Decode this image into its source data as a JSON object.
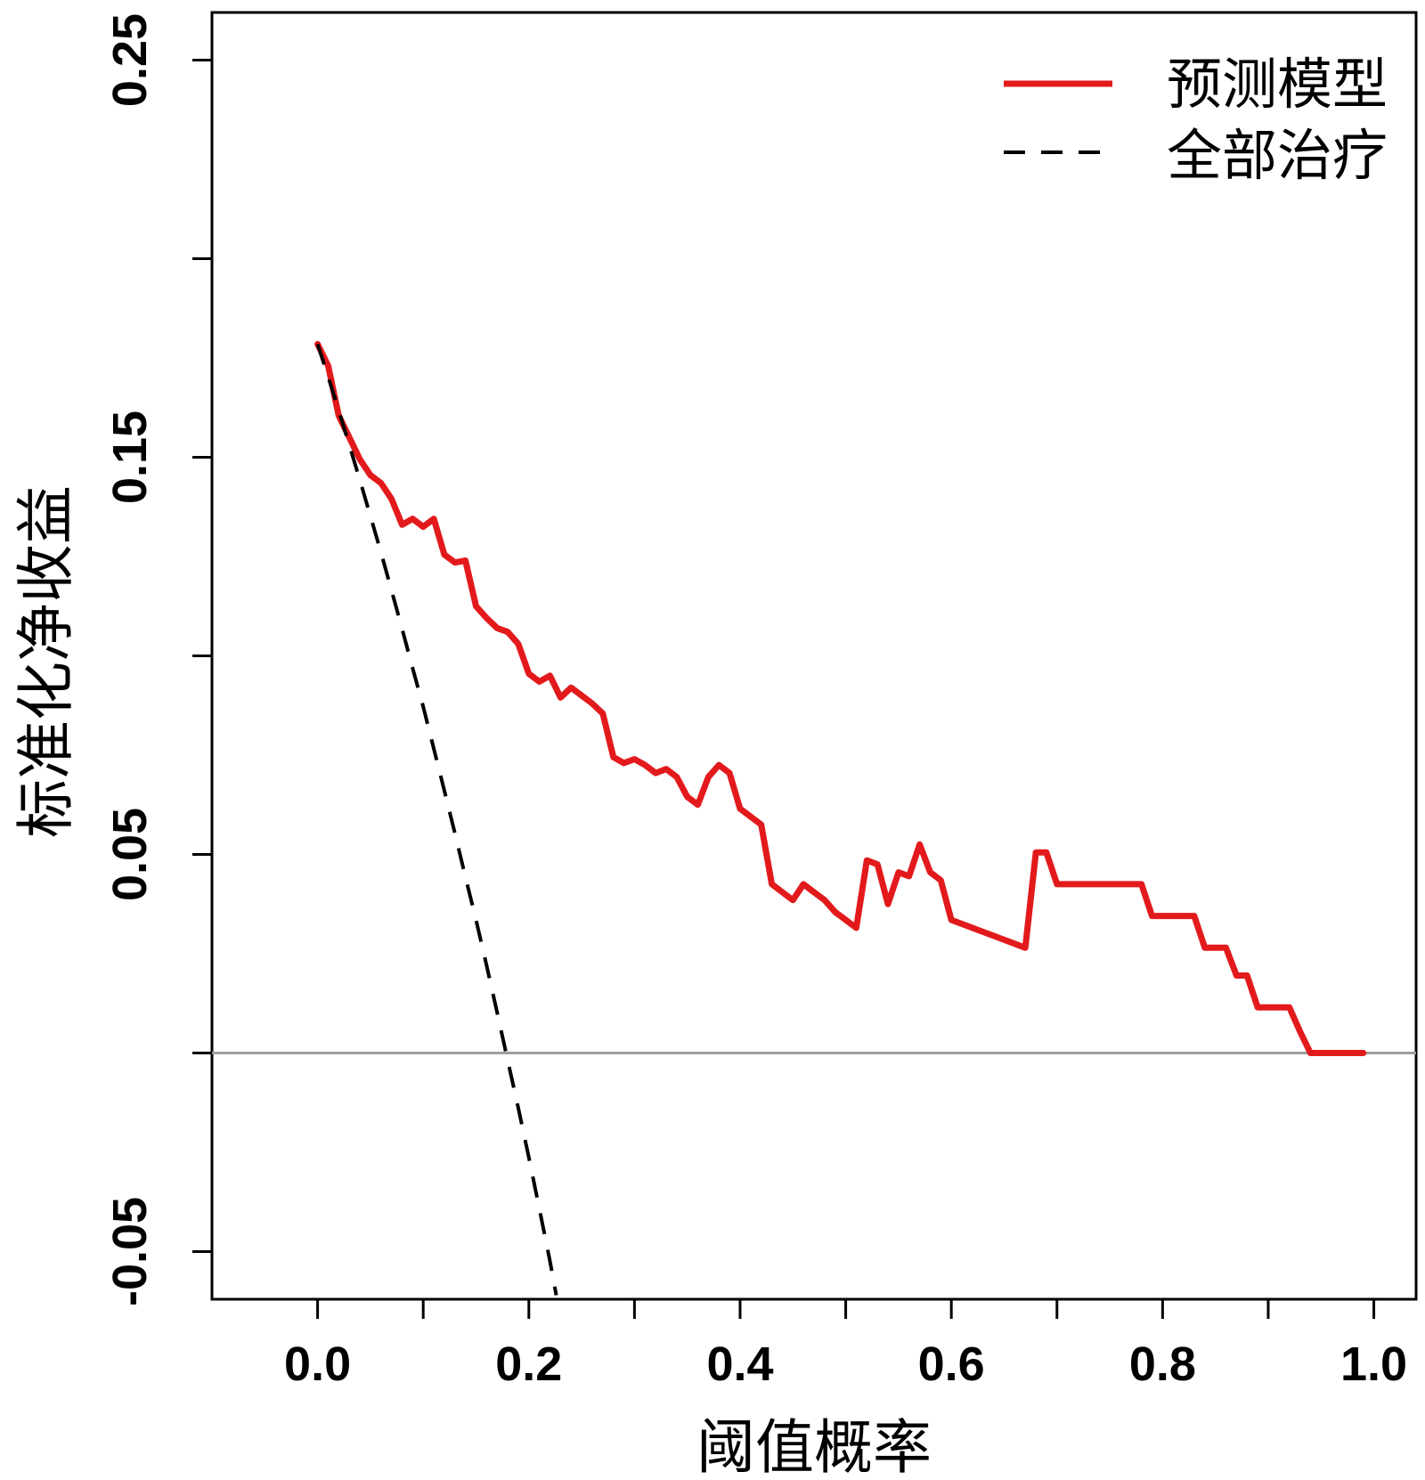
{
  "chart_data": {
    "type": "line",
    "title": "",
    "xlabel": "阈值概率",
    "ylabel": "标准化净收益",
    "xlim": [
      -0.1,
      1.04
    ],
    "ylim": [
      -0.062,
      0.262
    ],
    "x_ticks": [
      0.0,
      0.1,
      0.2,
      0.3,
      0.4,
      0.5,
      0.6,
      0.7,
      0.8,
      0.9,
      1.0
    ],
    "x_tick_labels": [
      {
        "value": 0.0,
        "label": "0.0"
      },
      {
        "value": 0.2,
        "label": "0.2"
      },
      {
        "value": 0.4,
        "label": "0.4"
      },
      {
        "value": 0.6,
        "label": "0.6"
      },
      {
        "value": 0.8,
        "label": "0.8"
      },
      {
        "value": 1.0,
        "label": "1.0"
      }
    ],
    "y_ticks": [
      -0.05,
      0.0,
      0.05,
      0.1,
      0.15,
      0.2,
      0.25
    ],
    "y_tick_labels": [
      {
        "value": -0.05,
        "label": "-0.05"
      },
      {
        "value": 0.05,
        "label": "0.05"
      },
      {
        "value": 0.15,
        "label": "0.15"
      },
      {
        "value": 0.25,
        "label": "0.25"
      }
    ],
    "reference_line": {
      "y": 0,
      "color": "#9e9e9e"
    },
    "grid": false,
    "legend": {
      "position": "top-right",
      "entries": [
        {
          "label": "预测模型",
          "color": "#e31a1c",
          "style": "solid"
        },
        {
          "label": "全部治疗",
          "color": "#000000",
          "style": "dashed"
        }
      ]
    },
    "series": [
      {
        "name": "预测模型",
        "color": "#e31a1c",
        "style": "solid",
        "points": [
          [
            0.0,
            0.1785
          ],
          [
            0.01,
            0.173
          ],
          [
            0.02,
            0.1605
          ],
          [
            0.03,
            0.155
          ],
          [
            0.04,
            0.1495
          ],
          [
            0.05,
            0.1455
          ],
          [
            0.06,
            0.1435
          ],
          [
            0.07,
            0.1395
          ],
          [
            0.08,
            0.133
          ],
          [
            0.09,
            0.1345
          ],
          [
            0.1,
            0.1325
          ],
          [
            0.11,
            0.1345
          ],
          [
            0.12,
            0.1255
          ],
          [
            0.13,
            0.1235
          ],
          [
            0.14,
            0.124
          ],
          [
            0.15,
            0.1125
          ],
          [
            0.16,
            0.1095
          ],
          [
            0.17,
            0.107
          ],
          [
            0.18,
            0.106
          ],
          [
            0.19,
            0.103
          ],
          [
            0.2,
            0.0955
          ],
          [
            0.21,
            0.0935
          ],
          [
            0.22,
            0.095
          ],
          [
            0.23,
            0.0895
          ],
          [
            0.24,
            0.092
          ],
          [
            0.25,
            0.09
          ],
          [
            0.26,
            0.088
          ],
          [
            0.27,
            0.0855
          ],
          [
            0.28,
            0.0745
          ],
          [
            0.29,
            0.073
          ],
          [
            0.3,
            0.074
          ],
          [
            0.31,
            0.0725
          ],
          [
            0.32,
            0.0705
          ],
          [
            0.33,
            0.0715
          ],
          [
            0.34,
            0.0695
          ],
          [
            0.35,
            0.0645
          ],
          [
            0.36,
            0.0625
          ],
          [
            0.37,
            0.0695
          ],
          [
            0.38,
            0.0725
          ],
          [
            0.39,
            0.0705
          ],
          [
            0.4,
            0.0615
          ],
          [
            0.41,
            0.0595
          ],
          [
            0.42,
            0.0575
          ],
          [
            0.43,
            0.0425
          ],
          [
            0.44,
            0.0405
          ],
          [
            0.45,
            0.0385
          ],
          [
            0.46,
            0.0425
          ],
          [
            0.47,
            0.0405
          ],
          [
            0.48,
            0.0385
          ],
          [
            0.49,
            0.0355
          ],
          [
            0.5,
            0.0335
          ],
          [
            0.51,
            0.0315
          ],
          [
            0.52,
            0.0485
          ],
          [
            0.53,
            0.0475
          ],
          [
            0.54,
            0.0375
          ],
          [
            0.55,
            0.0455
          ],
          [
            0.56,
            0.0445
          ],
          [
            0.57,
            0.0525
          ],
          [
            0.58,
            0.0455
          ],
          [
            0.59,
            0.0435
          ],
          [
            0.6,
            0.0335
          ],
          [
            0.61,
            0.0325
          ],
          [
            0.62,
            0.0315
          ],
          [
            0.63,
            0.0305
          ],
          [
            0.64,
            0.0295
          ],
          [
            0.65,
            0.0285
          ],
          [
            0.66,
            0.0275
          ],
          [
            0.67,
            0.0265
          ],
          [
            0.68,
            0.0505
          ],
          [
            0.69,
            0.0505
          ],
          [
            0.7,
            0.0425
          ],
          [
            0.71,
            0.0425
          ],
          [
            0.72,
            0.0425
          ],
          [
            0.73,
            0.0425
          ],
          [
            0.74,
            0.0425
          ],
          [
            0.75,
            0.0425
          ],
          [
            0.76,
            0.0425
          ],
          [
            0.77,
            0.0425
          ],
          [
            0.78,
            0.0425
          ],
          [
            0.79,
            0.0345
          ],
          [
            0.8,
            0.0345
          ],
          [
            0.81,
            0.0345
          ],
          [
            0.82,
            0.0345
          ],
          [
            0.83,
            0.0345
          ],
          [
            0.84,
            0.0265
          ],
          [
            0.85,
            0.0265
          ],
          [
            0.86,
            0.0265
          ],
          [
            0.87,
            0.0195
          ],
          [
            0.88,
            0.0195
          ],
          [
            0.89,
            0.0115
          ],
          [
            0.9,
            0.0115
          ],
          [
            0.91,
            0.0115
          ],
          [
            0.92,
            0.0115
          ],
          [
            0.93,
            0.0055
          ],
          [
            0.94,
            0.0
          ],
          [
            0.95,
            0.0
          ],
          [
            0.96,
            0.0
          ],
          [
            0.97,
            0.0
          ],
          [
            0.98,
            0.0
          ],
          [
            0.99,
            0.0
          ]
        ]
      },
      {
        "name": "全部治疗",
        "color": "#000000",
        "style": "dashed",
        "points": [
          [
            0.0,
            0.1785
          ],
          [
            0.01,
            0.1702
          ],
          [
            0.02,
            0.1618
          ],
          [
            0.03,
            0.1531
          ],
          [
            0.04,
            0.1443
          ],
          [
            0.05,
            0.1352
          ],
          [
            0.06,
            0.126
          ],
          [
            0.07,
            0.1165
          ],
          [
            0.08,
            0.1068
          ],
          [
            0.09,
            0.0969
          ],
          [
            0.1,
            0.0872
          ],
          [
            0.11,
            0.0766
          ],
          [
            0.12,
            0.0661
          ],
          [
            0.13,
            0.0553
          ],
          [
            0.14,
            0.0443
          ],
          [
            0.15,
            0.0335
          ],
          [
            0.16,
            0.022
          ],
          [
            0.17,
            0.0102
          ],
          [
            0.18,
            -0.0019
          ],
          [
            0.19,
            -0.0138
          ],
          [
            0.2,
            -0.0263
          ],
          [
            0.21,
            -0.0392
          ],
          [
            0.22,
            -0.0524
          ],
          [
            0.226,
            -0.061
          ]
        ]
      }
    ]
  }
}
